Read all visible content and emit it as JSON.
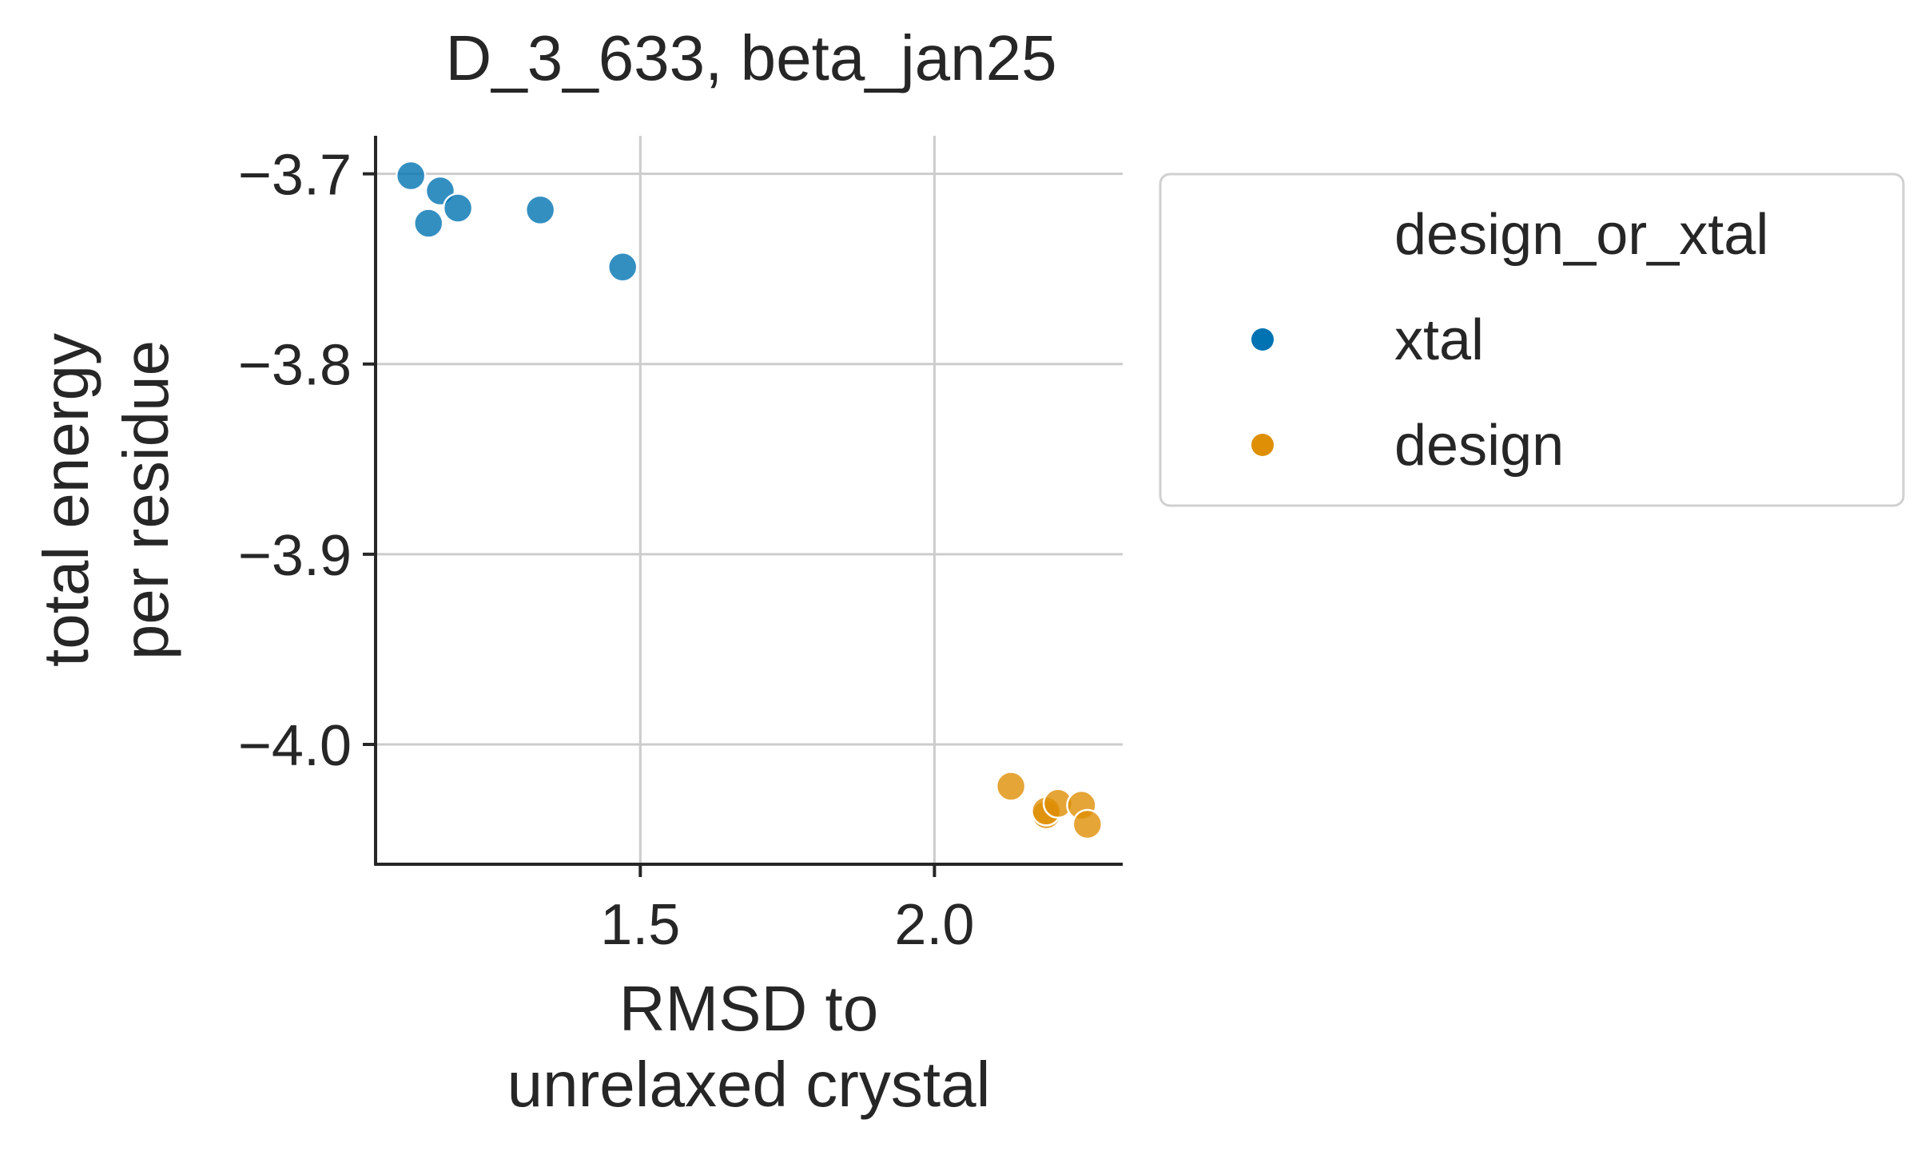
{
  "chart_data": {
    "type": "scatter",
    "title": "D_3_633, beta_jan25",
    "xlabel_lines": [
      "RMSD to",
      "unrelaxed crystal"
    ],
    "ylabel_lines": [
      "total energy",
      "per residue"
    ],
    "xlim": [
      1.05,
      2.32
    ],
    "ylim": [
      -4.063,
      -3.68
    ],
    "xticks": [
      1.5,
      2.0
    ],
    "xtick_labels": [
      "1.5",
      "2.0"
    ],
    "yticks": [
      -3.7,
      -3.8,
      -3.9,
      -4.0
    ],
    "ytick_labels": [
      "−3.7",
      "−3.8",
      "−3.9",
      "−4.0"
    ],
    "grid": true,
    "legend": {
      "title": "design_or_xtal",
      "placement": "outside-right"
    },
    "series": [
      {
        "name": "xtal",
        "color": "#0173b2",
        "points": [
          {
            "x": 1.11,
            "y": -3.701
          },
          {
            "x": 1.16,
            "y": -3.709
          },
          {
            "x": 1.14,
            "y": -3.726
          },
          {
            "x": 1.19,
            "y": -3.718
          },
          {
            "x": 1.33,
            "y": -3.719
          },
          {
            "x": 1.47,
            "y": -3.749
          }
        ]
      },
      {
        "name": "design",
        "color": "#de8f05",
        "points": [
          {
            "x": 2.13,
            "y": -4.022
          },
          {
            "x": 2.19,
            "y": -4.037
          },
          {
            "x": 2.19,
            "y": -4.035
          },
          {
            "x": 2.21,
            "y": -4.031
          },
          {
            "x": 2.25,
            "y": -4.032
          },
          {
            "x": 2.26,
            "y": -4.042
          }
        ]
      }
    ]
  }
}
